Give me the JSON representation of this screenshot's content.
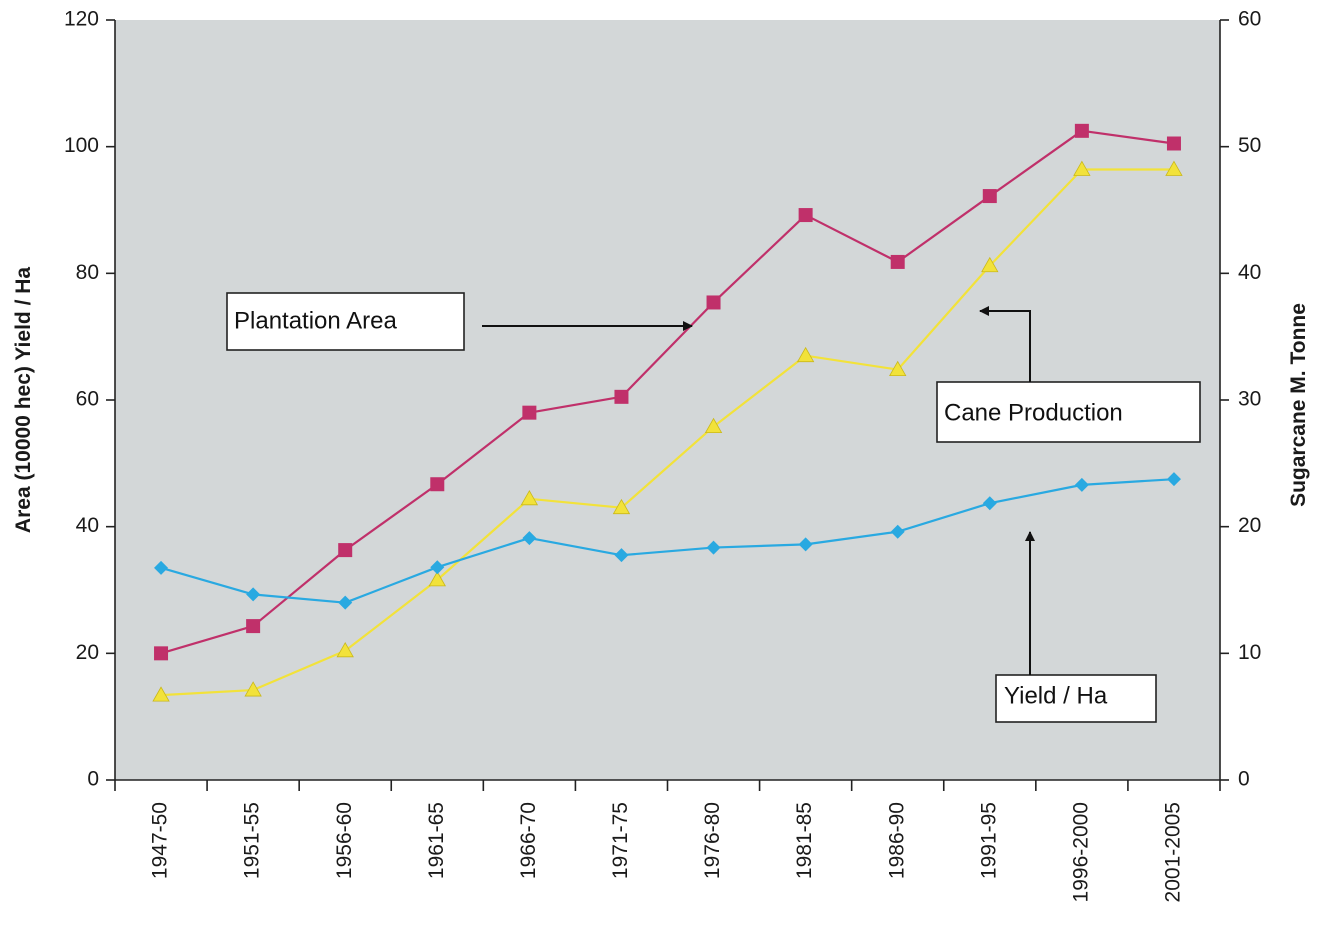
{
  "chart_data": {
    "type": "line",
    "categories": [
      "1947-50",
      "1951-55",
      "1956-60",
      "1961-65",
      "1966-70",
      "1971-75",
      "1976-80",
      "1981-85",
      "1986-90",
      "1991-95",
      "1996-2000",
      "2001-2005"
    ],
    "y_left": {
      "label": "Area (10000 hec)  Yield / Ha",
      "range": [
        0,
        120
      ],
      "ticks": [
        "0",
        "20",
        "40",
        "60",
        "80",
        "100",
        "120"
      ]
    },
    "y_right": {
      "label": "Sugarcane M. Tonne",
      "range": [
        0,
        60
      ],
      "ticks": [
        "0",
        "10",
        "20",
        "30",
        "40",
        "50",
        "60"
      ]
    },
    "series": [
      {
        "name": "Plantation Area",
        "axis": "left",
        "color": "#c0306a",
        "marker": "square",
        "values": [
          20.0,
          24.3,
          36.3,
          46.7,
          58.0,
          60.5,
          75.4,
          89.2,
          81.8,
          92.2,
          102.5,
          100.5
        ]
      },
      {
        "name": "Cane Production",
        "axis": "right",
        "color": "#f2e23a",
        "marker": "triangle",
        "values": [
          6.7,
          7.1,
          10.2,
          15.8,
          22.2,
          21.5,
          27.9,
          33.5,
          32.4,
          40.6,
          48.2,
          48.2
        ]
      },
      {
        "name": "Yield / Ha",
        "axis": "left",
        "color": "#29a9e1",
        "marker": "diamond",
        "values": [
          33.5,
          29.3,
          28.0,
          33.6,
          38.2,
          35.5,
          36.7,
          37.2,
          39.2,
          43.7,
          46.6,
          47.5
        ]
      }
    ],
    "callouts": [
      {
        "text": "Plantation Area",
        "series": "Plantation Area"
      },
      {
        "text": "Cane Production",
        "series": "Cane Production"
      },
      {
        "text": "Yield / Ha",
        "series": "Yield / Ha"
      }
    ],
    "colors": {
      "plot_background": "#d3d7d8",
      "axis": "#222222",
      "arrow": "#111111"
    }
  }
}
